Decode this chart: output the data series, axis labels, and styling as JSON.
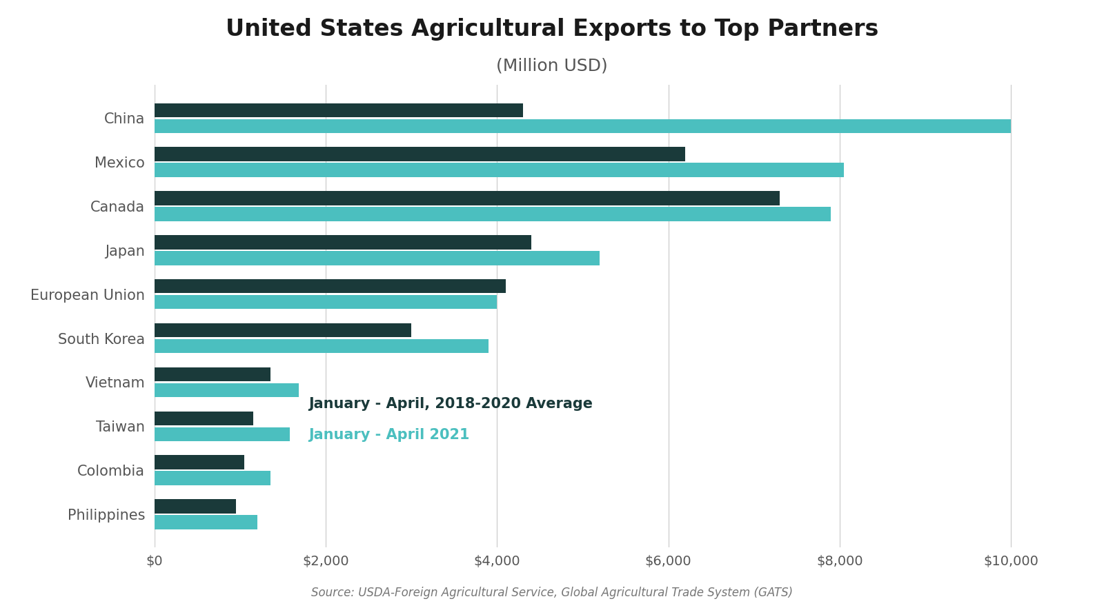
{
  "title_line1": "United States Agricultural Exports to Top Partners",
  "title_line2": "(Million USD)",
  "categories": [
    "China",
    "Mexico",
    "Canada",
    "Japan",
    "European Union",
    "South Korea",
    "Vietnam",
    "Taiwan",
    "Colombia",
    "Philippines"
  ],
  "avg_values": [
    4300,
    6200,
    7300,
    4400,
    4100,
    3000,
    1350,
    1150,
    1050,
    950
  ],
  "val_2021": [
    10000,
    8050,
    7900,
    5200,
    4000,
    3900,
    1680,
    1580,
    1350,
    1200
  ],
  "avg_color": "#1a3a3a",
  "val_2021_color": "#4bbfbf",
  "xlim_max": 10700,
  "xtick_values": [
    0,
    2000,
    4000,
    6000,
    8000,
    10000
  ],
  "xtick_labels": [
    "$0",
    "$2,000",
    "$4,000",
    "$6,000",
    "$8,000",
    "$10,000"
  ],
  "legend_avg_label": "January - April, 2018-2020 Average",
  "legend_2021_label": "January - April 2021",
  "source_text": "Source: USDA-Foreign Agricultural Service, Global Agricultural Trade System (GATS)",
  "background_color": "#ffffff",
  "grid_color": "#cccccc",
  "bar_height": 0.32,
  "bar_gap": 0.04,
  "legend_avg_color": "#1a3a3a",
  "legend_2021_color": "#4bbfbf",
  "title_fontsize": 24,
  "subtitle_fontsize": 18,
  "label_fontsize": 15,
  "tick_fontsize": 14,
  "legend_fontsize": 15,
  "source_fontsize": 12
}
